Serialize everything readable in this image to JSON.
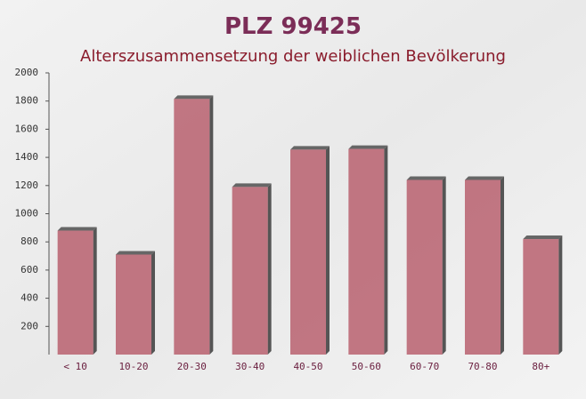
{
  "chart_data": {
    "type": "bar",
    "title": "PLZ 99425",
    "subtitle": "Alterszusammensetzung der weiblichen Bevölkerung",
    "categories": [
      "< 10",
      "10-20",
      "20-30",
      "30-40",
      "40-50",
      "50-60",
      "60-70",
      "70-80",
      "80+"
    ],
    "values": [
      880,
      710,
      1815,
      1190,
      1455,
      1460,
      1240,
      1240,
      820
    ],
    "color": "#b9606e",
    "ylim": [
      0,
      2000
    ],
    "yticks": [
      200,
      400,
      600,
      800,
      1000,
      1200,
      1400,
      1600,
      1800,
      2000
    ]
  }
}
